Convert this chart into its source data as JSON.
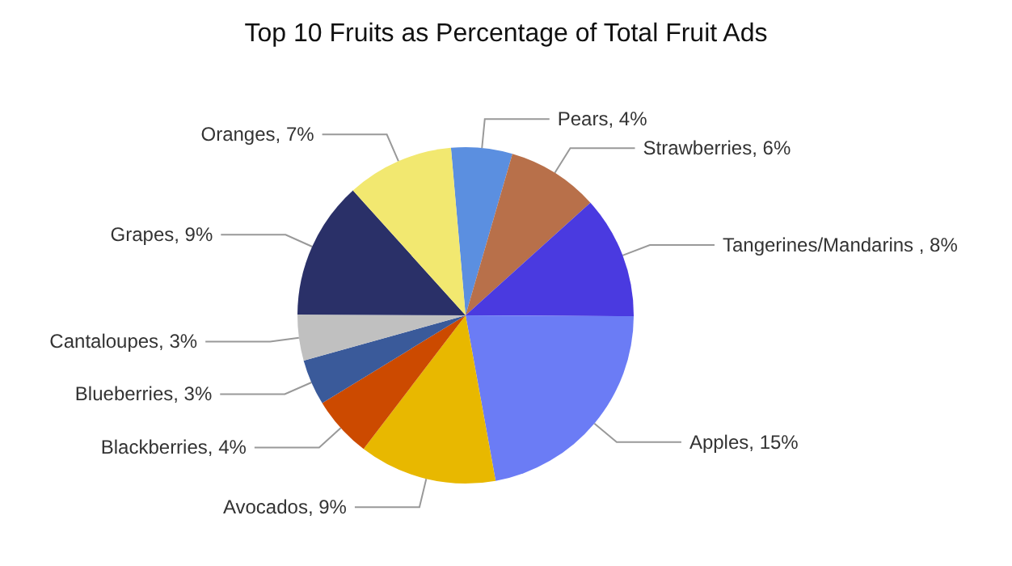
{
  "chart_data": {
    "type": "pie",
    "title": "Top 10 Fruits as Percentage of Total Fruit Ads",
    "categories": [
      "Pears",
      "Strawberries",
      "Tangerines/Mandarins ",
      "Apples",
      "Avocados",
      "Blackberries",
      "Blueberries",
      "Cantaloupes",
      "Grapes",
      "Oranges"
    ],
    "values": [
      4,
      6,
      8,
      15,
      9,
      4,
      3,
      3,
      9,
      7
    ],
    "value_labels": [
      "4%",
      "6%",
      "8%",
      "15%",
      "9%",
      "4%",
      "3%",
      "3%",
      "9%",
      "7%"
    ],
    "colors": [
      "#5b8fe0",
      "#b8704a",
      "#4a3ae0",
      "#6b7cf5",
      "#e8b800",
      "#cc4a00",
      "#3a5a9a",
      "#c0c0c0",
      "#2a3068",
      "#f2e870"
    ],
    "legend": false
  }
}
